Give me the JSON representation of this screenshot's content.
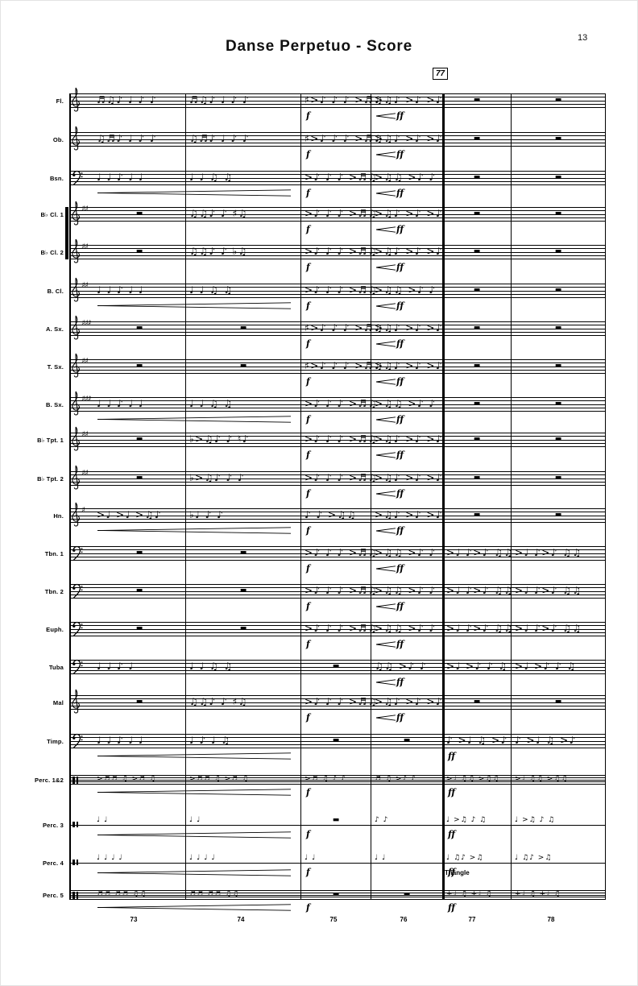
{
  "header": {
    "title": "Danse Perpetuo - Score",
    "page_number": "13",
    "rehearsal_mark": "77"
  },
  "annotations": {
    "instrument_note": "Triangle"
  },
  "measure_numbers": [
    "73",
    "74",
    "75",
    "76",
    "77",
    "78"
  ],
  "dynamic_levels_used": [
    "f",
    "ff"
  ],
  "staves": [
    {
      "id": "flute",
      "label": "Fl.",
      "clef": "treble",
      "sharps": 0,
      "notes": [
        "♬♫♪ ♩ ♪ ♪",
        "♬♫♪ ♩ ♪ ♪",
        "♯>♪ ♪ ♪ >♬♫",
        ">♫♪ >♪ >♪",
        "▬",
        "▬"
      ],
      "dyn": [
        "",
        "",
        "f",
        "<ff",
        "",
        ""
      ]
    },
    {
      "id": "oboe",
      "label": "Ob.",
      "clef": "treble",
      "sharps": 0,
      "notes": [
        "♫♬♪ ♩ ♪ ♪",
        "♫♬♪ ♩ ♪ ♪",
        "♯>♪ ♪ ♪ >♬♫",
        ">♫♪ >♪ >♪",
        "▬",
        "▬"
      ],
      "dyn": [
        "",
        "",
        "f",
        "<ff",
        "",
        ""
      ]
    },
    {
      "id": "bassoon",
      "label": "Bsn.",
      "clef": "bass",
      "sharps": 0,
      "notes": [
        "♩ ♩ ♪ ♩ ♩",
        "♩ ♩ ♫ ♫",
        ">♪ ♪ ♪ >♬♫",
        ">♫♫ >♪ ♪",
        "▬",
        "▬"
      ],
      "dyn": [
        "",
        "",
        "f",
        "<ff",
        "",
        ""
      ]
    },
    {
      "id": "clarinet-1",
      "label": "B♭ Cl. 1",
      "clef": "treble",
      "sharps": 2,
      "notes": [
        "▬",
        "♫♫♪ ♪ ♯♫",
        ">♪ ♪ ♪ >♬♫",
        ">♫♪ >♪ >♪",
        "▬",
        "▬"
      ],
      "dyn": [
        "",
        "",
        "f",
        "<ff",
        "",
        ""
      ]
    },
    {
      "id": "clarinet-2",
      "label": "B♭ Cl. 2",
      "clef": "treble",
      "sharps": 2,
      "notes": [
        "▬",
        "♫♫♪ ♪ ♭♫",
        ">♪ ♪ ♪ >♬♫",
        ">♫♪ >♪ >♪",
        "▬",
        "▬"
      ],
      "dyn": [
        "",
        "",
        "f",
        "<ff",
        "",
        ""
      ]
    },
    {
      "id": "bass-clarinet",
      "label": "B. Cl.",
      "clef": "treble",
      "sharps": 2,
      "notes": [
        "♩ ♩ ♪ ♩ ♩",
        "♩ ♩ ♫ ♫",
        ">♪ ♪ ♪ >♬♫",
        ">♫♫ >♪ ♪",
        "▬",
        "▬"
      ],
      "dyn": [
        "",
        "",
        "f",
        "<ff",
        "",
        ""
      ]
    },
    {
      "id": "alto-sax",
      "label": "A. Sx.",
      "clef": "treble",
      "sharps": 3,
      "notes": [
        "▬",
        "▬",
        "♯>♪ ♪ ♪ >♬♫",
        ">♫♪ >♪ >♪",
        "▬",
        "▬"
      ],
      "dyn": [
        "",
        "",
        "f",
        "<ff",
        "",
        ""
      ]
    },
    {
      "id": "tenor-sax",
      "label": "T. Sx.",
      "clef": "treble",
      "sharps": 2,
      "notes": [
        "▬",
        "▬",
        "♯>♪ ♪ ♪ >♬♫",
        ">♫♪ >♪ >♪",
        "▬",
        "▬"
      ],
      "dyn": [
        "",
        "",
        "f",
        "<ff",
        "",
        ""
      ]
    },
    {
      "id": "bari-sax",
      "label": "B. Sx.",
      "clef": "treble",
      "sharps": 3,
      "notes": [
        "♩ ♩ ♪ ♩ ♩",
        "♩ ♩ ♫ ♫",
        ">♪ ♪ ♪ >♬♫",
        ">♫♫ >♪ ♪",
        "▬",
        "▬"
      ],
      "dyn": [
        "",
        "",
        "f",
        "<ff",
        "",
        ""
      ]
    },
    {
      "id": "trumpet-1",
      "label": "B♭ Tpt. 1",
      "clef": "treble",
      "sharps": 2,
      "notes": [
        "▬",
        "♭>♫♪ ♪ ♮♪",
        ">♪ ♪ ♪ >♬♫",
        ">♫♪ >♪ >♪",
        "▬",
        "▬"
      ],
      "dyn": [
        "",
        "",
        "f",
        "<ff",
        "",
        ""
      ]
    },
    {
      "id": "trumpet-2",
      "label": "B♭ Tpt. 2",
      "clef": "treble",
      "sharps": 2,
      "notes": [
        "▬",
        "♭>♫♪ ♪ ♪",
        ">♪ ♪ ♪ >♬♫",
        ">♫♪ >♪ >♪",
        "▬",
        "▬"
      ],
      "dyn": [
        "",
        "",
        "f",
        "<ff",
        "",
        ""
      ]
    },
    {
      "id": "horn",
      "label": "Hn.",
      "clef": "treble",
      "sharps": 1,
      "notes": [
        ">♩ >♩ >♫♪",
        "♭♩ ♪ ♪",
        "♪ ♪ >♫♫",
        ">♫♪ >♪ >♪",
        "▬",
        "▬"
      ],
      "dyn": [
        "",
        "",
        "f",
        "<ff",
        "",
        ""
      ]
    },
    {
      "id": "trombone-1",
      "label": "Tbn. 1",
      "clef": "bass",
      "sharps": 0,
      "notes": [
        "▬",
        "▬",
        ">♪ ♪ ♪ >♬♫",
        ">♫♫ >♪ ♪",
        ">♩ ♪>♪ ♫♫",
        ">♩ ♪>♪ ♫♫"
      ],
      "dyn": [
        "",
        "",
        "f",
        "<ff",
        "",
        ""
      ]
    },
    {
      "id": "trombone-2",
      "label": "Tbn. 2",
      "clef": "bass",
      "sharps": 0,
      "notes": [
        "▬",
        "▬",
        ">♪ ♪ ♪ >♬♫",
        ">♫♫ >♪ ♪",
        ">♩ ♪>♪ ♫♫",
        ">♩ ♪>♪ ♫♫"
      ],
      "dyn": [
        "",
        "",
        "f",
        "<ff",
        "",
        ""
      ]
    },
    {
      "id": "euphonium",
      "label": "Euph.",
      "clef": "bass",
      "sharps": 0,
      "notes": [
        "▬",
        "▬",
        ">♪ ♪ ♪ >♬♫",
        ">♫♫ >♪ ♪",
        ">♩ ♪>♪ ♫♫",
        ">♩ ♪>♪ ♫♫"
      ],
      "dyn": [
        "",
        "",
        "f",
        "<ff",
        "",
        ""
      ]
    },
    {
      "id": "tuba",
      "label": "Tuba",
      "clef": "bass",
      "sharps": 0,
      "notes": [
        "♩ ♩ ♪ ♩",
        "♩ ♩ ♫ ♫",
        "▬",
        "♫♫ >♪ ♪",
        ">♩ >♪ ♪ ♫",
        ">♩ >♪ ♪ ♫"
      ],
      "dyn": [
        "",
        "",
        "",
        "<ff",
        "",
        ""
      ]
    },
    {
      "id": "mallets",
      "label": "Mal",
      "clef": "treble",
      "sharps": 0,
      "notes": [
        "▬",
        "♫♫♪ ♪ ♯♫",
        ">♪ ♪ ♪ >♬♫",
        ">♫♪ >♪ >♪",
        "▬",
        "▬"
      ],
      "dyn": [
        "",
        "",
        "f",
        "<ff",
        "",
        ""
      ]
    },
    {
      "id": "timpani",
      "label": "Timp.",
      "clef": "bass",
      "sharps": 0,
      "notes": [
        "♩ ♩ ♪ ♩ ♩",
        "♩ ♪ ♩ ♫",
        "▬",
        "▬",
        "♪ >♩ ♫ >♪",
        "♪ >♩ ♫ >♪"
      ],
      "dyn": [
        "",
        "",
        "",
        "",
        "ff",
        ""
      ]
    },
    {
      "id": "percussion-1-2",
      "label": "Perc. 1&2",
      "clef": "perc",
      "sharps": 0,
      "notes": [
        ">♬♬ ♫ >♬ ♫",
        ">♬♬ ♫ >♬ ♫",
        ">♬ ♫ ♪ ♪",
        "♬ ♫ >♪ ♪",
        ">♩ ♫♫ >♫♫",
        ">♩ ♫♫ >♫♫"
      ],
      "dyn": [
        "",
        "",
        "f",
        "",
        "ff",
        ""
      ]
    },
    {
      "id": "percussion-3",
      "label": "Perc. 3",
      "clef": "perc",
      "sharps": 0,
      "notes": [
        "♩ ♩",
        "♩ ♩",
        "▬",
        "♪ ♪",
        "♩ >♫ ♪ ♫",
        "♩ >♫ ♪ ♫"
      ],
      "dyn": [
        "",
        "",
        "f",
        "",
        "ff",
        ""
      ]
    },
    {
      "id": "percussion-4",
      "label": "Perc. 4",
      "clef": "perc",
      "sharps": 0,
      "notes": [
        "♩ ♩ ♩ ♩",
        "♩ ♩ ♩ ♩",
        "♩ ♩",
        "♩ ♩",
        "♩ ♫♪ >♫",
        "♩ ♫♪ >♫"
      ],
      "dyn": [
        "",
        "",
        "f",
        "",
        "ff",
        ""
      ]
    },
    {
      "id": "percussion-5",
      "label": "Perc. 5",
      "clef": "perc",
      "sharps": 0,
      "notes": [
        "♬♬ ♬♬ ♫♫",
        "♬♬ ♬♬ ♫♫",
        "▬",
        "▬",
        "+♩ ♫ +♩ ♫",
        "+♩ ♫ +♩ ♫"
      ],
      "dyn": [
        "",
        "",
        "f",
        "",
        "ff",
        ""
      ]
    }
  ]
}
